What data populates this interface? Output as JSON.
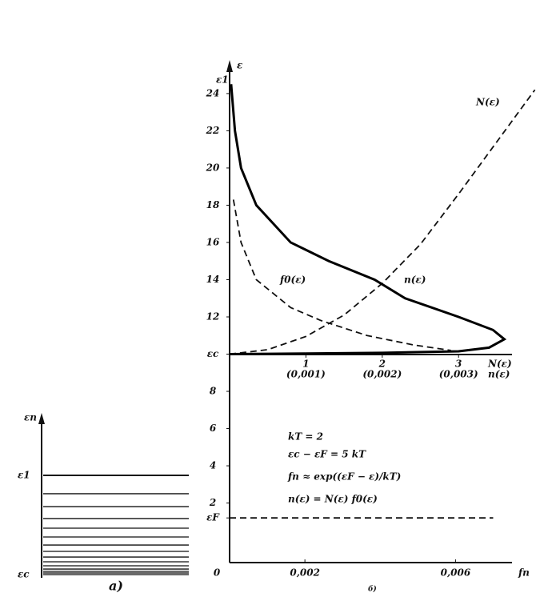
{
  "panel_a": {
    "axis_label": "εn",
    "top_label": "ε1",
    "bottom_label": "εc",
    "caption": "a)",
    "levels": [
      1,
      0.815,
      0.685,
      0.565,
      0.468,
      0.379,
      0.298,
      0.234,
      0.177,
      0.129,
      0.089,
      0.056,
      0.032,
      0.016,
      0
    ]
  },
  "chart_data": {
    "type": "line",
    "y_label": "ε",
    "y_top_label": "ε1",
    "ylim": [
      -1.2,
      25.5
    ],
    "yticks": [
      {
        "value": 1.2,
        "label": "εF"
      },
      2,
      4,
      6,
      8,
      {
        "value": 10,
        "label": "εc"
      },
      12,
      14,
      16,
      18,
      20,
      22,
      24
    ],
    "xlim": [
      0,
      3.7
    ],
    "xticks": [
      1,
      2,
      3
    ],
    "xtick_sublabels": [
      "(0,001)",
      "(0,002)",
      "(0,003)"
    ],
    "x_label": "N(ε)",
    "x_label2": "n(ε)",
    "x2lim": [
      0,
      0.0075
    ],
    "x2ticks": [
      0,
      {
        "value": 0.002,
        "label": "0,002"
      },
      {
        "value": 0.006,
        "label": "0,006"
      }
    ],
    "x2_label": "fn",
    "series": [
      {
        "name": "N(ε)",
        "color": "#111",
        "dashed": true,
        "x": [
          0,
          0.5,
          1,
          1.5,
          2,
          2.5,
          3,
          3.5,
          4
        ],
        "values": [
          10,
          10.24,
          10.95,
          12.1,
          13.8,
          15.9,
          18.6,
          21.4,
          24.2
        ]
      },
      {
        "name": "n(ε)",
        "color": "#000",
        "dashed": false,
        "x": [
          0,
          1,
          2,
          3,
          3.4,
          3.6,
          3.45,
          3.0,
          2.3,
          1.9,
          1.3,
          0.8,
          0.35,
          0.15,
          0.07,
          0.02
        ],
        "values": [
          10,
          10.03,
          10.07,
          10.15,
          10.35,
          10.8,
          11.3,
          12,
          13,
          14,
          15,
          16,
          18,
          20,
          22,
          24.5
        ]
      },
      {
        "name": "f0(ε)",
        "color": "#111",
        "dashed": true,
        "x": [
          0.05,
          0.15,
          0.35,
          0.8,
          1.2,
          1.8,
          2.4,
          2.9
        ],
        "values": [
          18.3,
          16,
          14,
          12.5,
          11.8,
          11,
          10.5,
          10.2
        ]
      },
      {
        "color": "#111",
        "dashed": true,
        "axis": "x2",
        "x": [
          0,
          0.007
        ],
        "values": [
          1.2,
          1.2
        ]
      }
    ],
    "annotations": [
      "kT = 2",
      "εc − εF = 5 kT",
      "fn ≈ exp((εF − ε)/kT)",
      "n(ε) = N(ε) f0(ε)"
    ],
    "caption": "б)"
  }
}
